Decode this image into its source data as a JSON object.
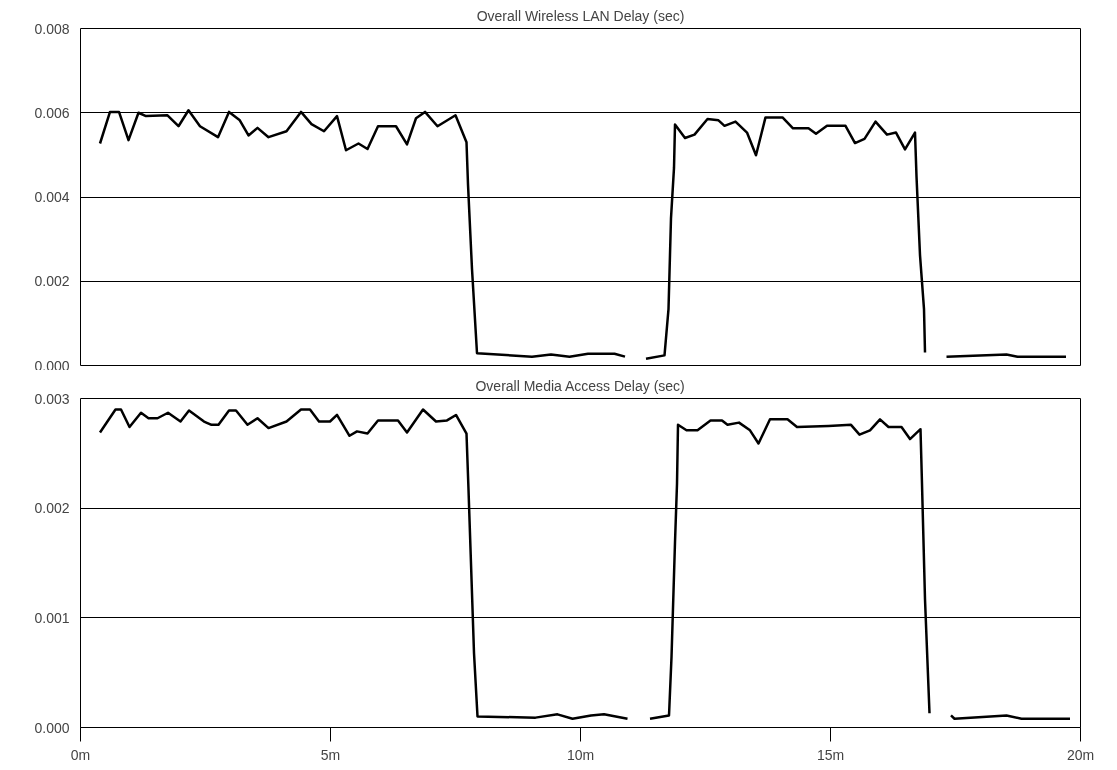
{
  "chart_data": [
    {
      "type": "line",
      "title": "Overall Wireless LAN Delay (sec)",
      "xlim": [
        0,
        20
      ],
      "ylim": [
        0,
        0.008
      ],
      "yticks": [
        {
          "value": 0,
          "label": "0.000"
        },
        {
          "value": 0.002,
          "label": "0.002"
        },
        {
          "value": 0.004,
          "label": "0.004"
        },
        {
          "value": 0.006,
          "label": "0.006"
        },
        {
          "value": 0.008,
          "label": "0.008"
        }
      ],
      "tick_labels": "y",
      "grid": "y",
      "marker": "none",
      "line_style": "solid",
      "series": [
        {
          "color": "#000000",
          "x": [
            0.39,
            0.59,
            0.77,
            0.96,
            1.16,
            1.31,
            1.74,
            1.96,
            2.16,
            2.39,
            2.75,
            2.97,
            3.18,
            3.36,
            3.54,
            3.76,
            4.12,
            4.41,
            4.62,
            4.87,
            5.13,
            5.31,
            5.56,
            5.74,
            5.95,
            6.31,
            6.53,
            6.71,
            6.89,
            7.14,
            7.5,
            7.72,
            7.75,
            7.83,
            7.93,
            9.03,
            9.41,
            9.78,
            10.15,
            10.68,
            10.89,
            11.1,
            11.31,
            11.68,
            11.76,
            11.81,
            11.87,
            11.89,
            12.09,
            12.28,
            12.54,
            12.76,
            12.88,
            13.1,
            13.33,
            13.51,
            13.7,
            14.04,
            14.25,
            14.56,
            14.71,
            14.93,
            15.3,
            15.49,
            15.68,
            15.9,
            16.13,
            16.31,
            16.49,
            16.69,
            16.72,
            16.79,
            16.87,
            16.89,
            17.1,
            17.32,
            18.52,
            18.74,
            19.71
          ],
          "values": [
            0.00527,
            0.00602,
            0.00602,
            0.00535,
            0.006,
            0.00592,
            0.00594,
            0.00568,
            0.00606,
            0.00568,
            0.00542,
            0.00602,
            0.00583,
            0.00546,
            0.00564,
            0.00542,
            0.00556,
            0.00602,
            0.00573,
            0.00556,
            0.00592,
            0.00511,
            0.00527,
            0.00514,
            0.00568,
            0.00568,
            0.00525,
            0.00587,
            0.00602,
            0.00568,
            0.00594,
            0.0053,
            0.0043,
            0.00229,
            0.00029,
            0.00021,
            0.00026,
            0.00021,
            0.00028,
            0.00028,
            0.00021,
            null,
            0.00016,
            0.00024,
            0.00134,
            0.0035,
            0.00469,
            0.00572,
            0.0054,
            0.00548,
            0.00585,
            0.00582,
            0.00569,
            0.00579,
            0.00553,
            0.00499,
            0.00589,
            0.00589,
            0.00563,
            0.00563,
            0.0055,
            0.00569,
            0.00569,
            0.00528,
            0.00538,
            0.00579,
            0.00548,
            0.00553,
            0.00513,
            0.00553,
            0.00449,
            0.00262,
            0.00134,
            0.00031,
            null,
            0.00021,
            0.00026,
            0.00021,
            0.00021
          ]
        }
      ]
    },
    {
      "type": "line",
      "title": "Overall Media Access Delay (sec)",
      "xlim": [
        0,
        20
      ],
      "ylim": [
        0,
        0.003
      ],
      "xticks": [
        {
          "value": 0,
          "label": "0m"
        },
        {
          "value": 5,
          "label": "5m"
        },
        {
          "value": 10,
          "label": "10m"
        },
        {
          "value": 15,
          "label": "15m"
        },
        {
          "value": 20,
          "label": "20m"
        }
      ],
      "yticks": [
        {
          "value": 0,
          "label": "0.000"
        },
        {
          "value": 0.001,
          "label": "0.001"
        },
        {
          "value": 0.002,
          "label": "0.002"
        },
        {
          "value": 0.003,
          "label": "0.003"
        }
      ],
      "grid": "y",
      "marker": "none",
      "line_style": "solid",
      "series": [
        {
          "color": "#000000",
          "x": [
            0.39,
            0.7,
            0.81,
            0.98,
            1.21,
            1.36,
            1.54,
            1.75,
            2.0,
            2.17,
            2.47,
            2.62,
            2.76,
            2.97,
            3.11,
            3.34,
            3.54,
            3.76,
            4.12,
            4.41,
            4.59,
            4.77,
            4.99,
            5.13,
            5.38,
            5.53,
            5.74,
            5.95,
            6.35,
            6.53,
            6.85,
            7.11,
            7.33,
            7.51,
            7.72,
            7.76,
            7.8,
            7.87,
            7.94,
            9.1,
            9.54,
            9.84,
            10.21,
            10.47,
            10.94,
            11.15,
            11.39,
            11.77,
            11.82,
            11.89,
            11.93,
            11.95,
            12.12,
            12.34,
            12.6,
            12.83,
            12.94,
            13.17,
            13.39,
            13.56,
            13.79,
            14.14,
            14.33,
            14.96,
            15.41,
            15.58,
            15.79,
            15.99,
            16.16,
            16.42,
            16.59,
            16.8,
            16.83,
            16.89,
            16.98,
            17.2,
            17.41,
            17.48,
            18.52,
            18.82,
            19.79
          ],
          "values": [
            0.00269,
            0.0029,
            0.0029,
            0.00274,
            0.00287,
            0.00282,
            0.00282,
            0.00287,
            0.00279,
            0.00289,
            0.00279,
            0.00276,
            0.00276,
            0.00289,
            0.00289,
            0.00276,
            0.00282,
            0.00273,
            0.00279,
            0.0029,
            0.0029,
            0.00279,
            0.00279,
            0.00285,
            0.00266,
            0.0027,
            0.00268,
            0.0028,
            0.0028,
            0.00269,
            0.0029,
            0.00279,
            0.0028,
            0.00285,
            0.00268,
            0.00217,
            0.00163,
            0.00068,
            0.0001,
            9e-05,
            0.00012,
            8e-05,
            0.00011,
            0.00012,
            8e-05,
            null,
            8e-05,
            0.00011,
            0.00064,
            0.00169,
            0.00222,
            0.00276,
            0.00271,
            0.00271,
            0.0028,
            0.0028,
            0.00276,
            0.00278,
            0.00271,
            0.00259,
            0.00281,
            0.00281,
            0.00274,
            0.00275,
            0.00276,
            0.00267,
            0.00271,
            0.00281,
            0.00274,
            0.00274,
            0.00263,
            0.00272,
            0.00222,
            0.00117,
            0.00013,
            null,
            0.00011,
            8e-05,
            0.00011,
            8e-05,
            8e-05
          ]
        }
      ]
    }
  ]
}
